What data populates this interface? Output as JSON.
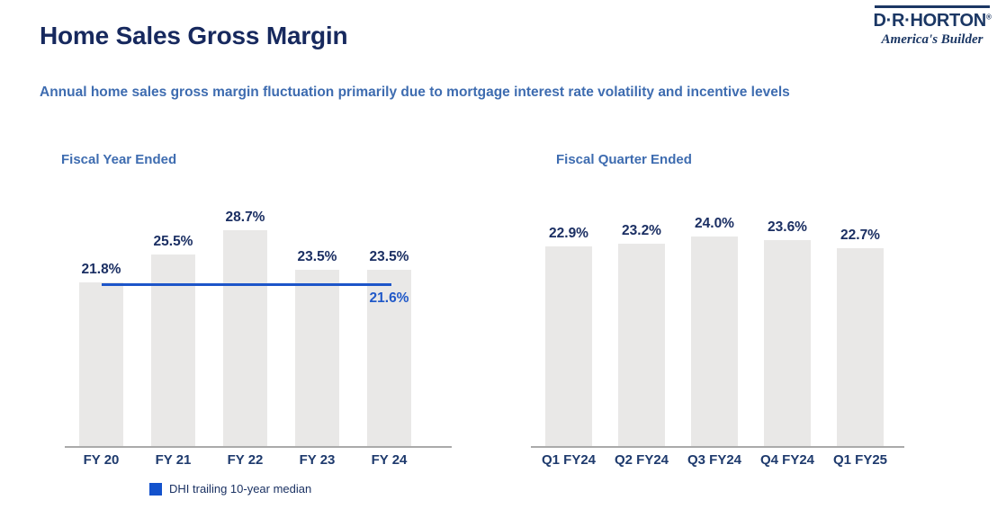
{
  "header": {
    "title": "Home Sales Gross Margin",
    "subtitle": "Annual home sales gross margin fluctuation primarily due to mortgage interest rate volatility and incentive levels"
  },
  "logo": {
    "wordmark": "D·R·HORTON",
    "registered_mark": "®",
    "tagline": "America's Builder"
  },
  "colors": {
    "title_navy": "#17295e",
    "heading_blue": "#3e6cb0",
    "label_navy": "#1b2f63",
    "bar_fill": "#e9e8e7",
    "axis_gray": "#aaaaaa",
    "median_line_blue": "#1d55c9",
    "median_label_blue": "#2159c8",
    "legend_swatch_blue": "#1352cc",
    "brand_navy": "#1b3764"
  },
  "chart_data": [
    {
      "type": "bar",
      "title": "Fiscal Year Ended",
      "categories": [
        "FY 20",
        "FY 21",
        "FY 22",
        "FY 23",
        "FY 24"
      ],
      "values": [
        21.8,
        25.5,
        28.7,
        23.5,
        23.5
      ],
      "value_labels": [
        "21.8%",
        "25.5%",
        "28.7%",
        "23.5%",
        "23.5%"
      ],
      "unit": "%",
      "median_line": {
        "value": 21.6,
        "label": "21.6%",
        "legend": "DHI trailing 10-year median"
      },
      "layout_hints": {
        "y_axis": "hidden",
        "gridlines": false,
        "value_labels": "above bars",
        "legend_position": "below chart"
      }
    },
    {
      "type": "bar",
      "title": "Fiscal Quarter Ended",
      "categories": [
        "Q1 FY24",
        "Q2 FY24",
        "Q3 FY24",
        "Q4 FY24",
        "Q1 FY25"
      ],
      "values": [
        22.9,
        23.2,
        24.0,
        23.6,
        22.7
      ],
      "value_labels": [
        "22.9%",
        "23.2%",
        "24.0%",
        "23.6%",
        "22.7%"
      ],
      "unit": "%",
      "layout_hints": {
        "y_axis": "hidden",
        "gridlines": false,
        "value_labels": "above bars"
      }
    }
  ]
}
